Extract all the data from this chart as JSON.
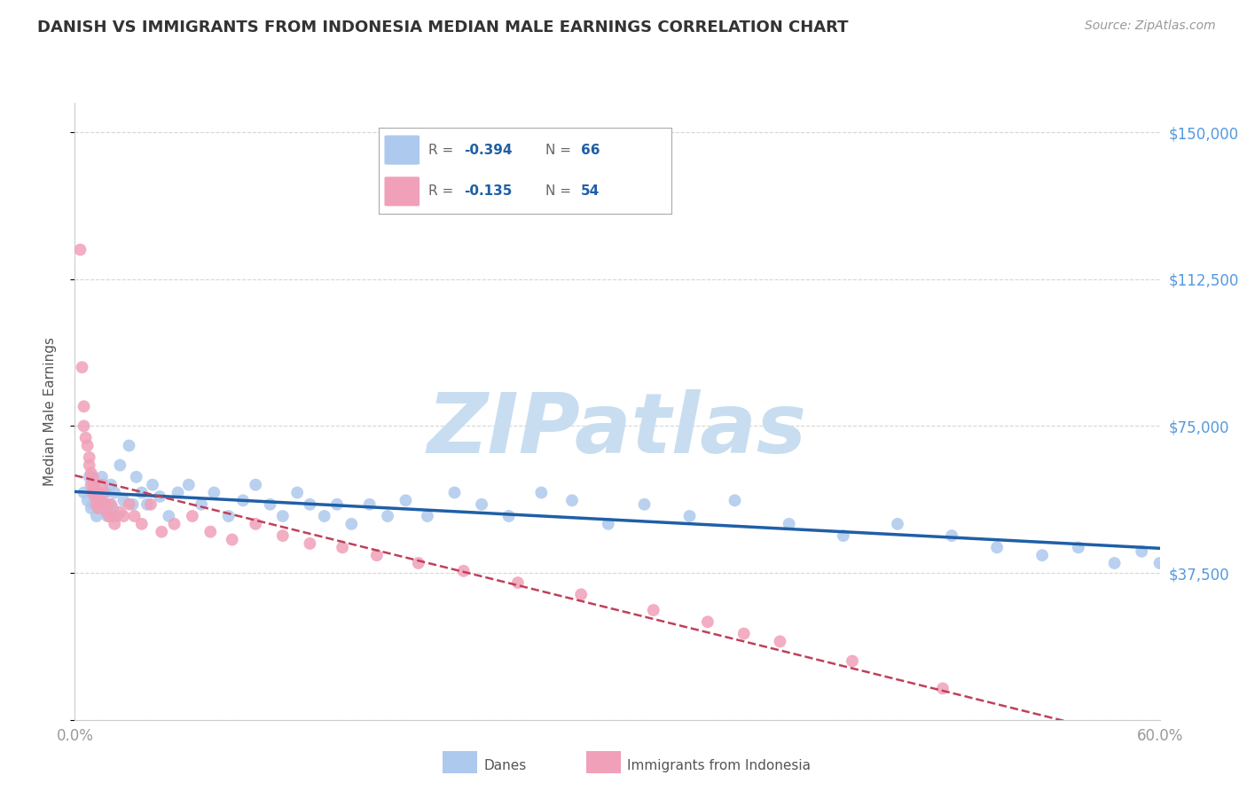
{
  "title": "DANISH VS IMMIGRANTS FROM INDONESIA MEDIAN MALE EARNINGS CORRELATION CHART",
  "source": "Source: ZipAtlas.com",
  "ylabel": "Median Male Earnings",
  "xlim": [
    0.0,
    0.6
  ],
  "ylim": [
    0,
    157500
  ],
  "yticks": [
    0,
    37500,
    75000,
    112500,
    150000
  ],
  "ytick_labels": [
    "",
    "$37,500",
    "$75,000",
    "$112,500",
    "$150,000"
  ],
  "xticks": [
    0.0,
    0.1,
    0.2,
    0.3,
    0.4,
    0.5,
    0.6
  ],
  "xtick_labels": [
    "0.0%",
    "",
    "",
    "",
    "",
    "",
    "60.0%"
  ],
  "danes_R": "-0.394",
  "danes_N": "66",
  "indonesia_R": "-0.135",
  "indonesia_N": "54",
  "danes_color": "#adc9ed",
  "danes_line_color": "#1f5fa6",
  "indonesia_color": "#f0a0b8",
  "indonesia_line_color": "#c0405a",
  "background_color": "#ffffff",
  "watermark": "ZIPatlas",
  "watermark_color": "#c8ddf0",
  "legend_label1": "Danes",
  "legend_label2": "Immigrants from Indonesia",
  "danes_x": [
    0.005,
    0.007,
    0.008,
    0.009,
    0.01,
    0.01,
    0.011,
    0.012,
    0.013,
    0.014,
    0.015,
    0.016,
    0.017,
    0.018,
    0.019,
    0.02,
    0.021,
    0.022,
    0.023,
    0.025,
    0.027,
    0.03,
    0.032,
    0.034,
    0.037,
    0.04,
    0.043,
    0.047,
    0.052,
    0.057,
    0.063,
    0.07,
    0.077,
    0.085,
    0.093,
    0.1,
    0.108,
    0.115,
    0.123,
    0.13,
    0.138,
    0.145,
    0.153,
    0.163,
    0.173,
    0.183,
    0.195,
    0.21,
    0.225,
    0.24,
    0.258,
    0.275,
    0.295,
    0.315,
    0.34,
    0.365,
    0.395,
    0.425,
    0.455,
    0.485,
    0.51,
    0.535,
    0.555,
    0.575,
    0.59,
    0.6
  ],
  "danes_y": [
    58000,
    56000,
    62000,
    54000,
    60000,
    55000,
    58000,
    52000,
    57000,
    54000,
    62000,
    55000,
    58000,
    52000,
    55000,
    60000,
    54000,
    58000,
    52000,
    65000,
    56000,
    70000,
    55000,
    62000,
    58000,
    55000,
    60000,
    57000,
    52000,
    58000,
    60000,
    55000,
    58000,
    52000,
    56000,
    60000,
    55000,
    52000,
    58000,
    55000,
    52000,
    55000,
    50000,
    55000,
    52000,
    56000,
    52000,
    58000,
    55000,
    52000,
    58000,
    56000,
    50000,
    55000,
    52000,
    56000,
    50000,
    47000,
    50000,
    47000,
    44000,
    42000,
    44000,
    40000,
    43000,
    40000
  ],
  "indonesia_x": [
    0.003,
    0.004,
    0.005,
    0.005,
    0.006,
    0.007,
    0.008,
    0.008,
    0.009,
    0.009,
    0.01,
    0.01,
    0.011,
    0.011,
    0.012,
    0.012,
    0.013,
    0.013,
    0.014,
    0.015,
    0.015,
    0.016,
    0.017,
    0.018,
    0.019,
    0.02,
    0.021,
    0.022,
    0.025,
    0.027,
    0.03,
    0.033,
    0.037,
    0.042,
    0.048,
    0.055,
    0.065,
    0.075,
    0.087,
    0.1,
    0.115,
    0.13,
    0.148,
    0.167,
    0.19,
    0.215,
    0.245,
    0.28,
    0.32,
    0.37,
    0.35,
    0.39,
    0.43,
    0.48
  ],
  "indonesia_y": [
    120000,
    90000,
    80000,
    75000,
    72000,
    70000,
    67000,
    65000,
    63000,
    60000,
    62000,
    58000,
    60000,
    57000,
    58000,
    55000,
    57000,
    54000,
    56000,
    60000,
    55000,
    58000,
    55000,
    53000,
    52000,
    55000,
    52000,
    50000,
    53000,
    52000,
    55000,
    52000,
    50000,
    55000,
    48000,
    50000,
    52000,
    48000,
    46000,
    50000,
    47000,
    45000,
    44000,
    42000,
    40000,
    38000,
    35000,
    32000,
    28000,
    22000,
    25000,
    20000,
    15000,
    8000
  ]
}
